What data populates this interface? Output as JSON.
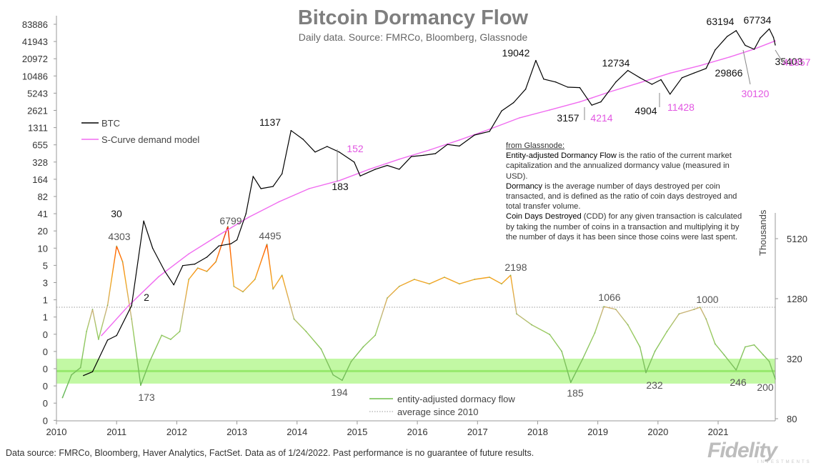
{
  "chart_data": {
    "type": "line",
    "title": "Bitcoin Dormancy Flow",
    "subtitle": "Daily data.  Source: FMRCo, Bloomberg, Glassnode",
    "x_axis": {
      "ticks": [
        "2010",
        "2011",
        "2012",
        "2013",
        "2014",
        "2015",
        "2016",
        "2017",
        "2018",
        "2019",
        "2020",
        "2021"
      ],
      "range": [
        2010,
        2021.95
      ]
    },
    "y_left": {
      "scale": "log",
      "tick_labels": [
        "83886",
        "41943",
        "20972",
        "10486",
        "5243",
        "2621",
        "1311",
        "655",
        "328",
        "164",
        "82",
        "41",
        "20",
        "10",
        "5",
        "3",
        "1",
        "1",
        "0",
        "0",
        "0",
        "0",
        "0",
        "0"
      ]
    },
    "y_right": {
      "scale": "log",
      "unit_label": "Thousands",
      "tick_labels": [
        "5120",
        "1280",
        "320",
        "80"
      ]
    },
    "series": [
      {
        "name": "BTC",
        "color": "#000000",
        "points": [
          [
            2010.45,
            0.06
          ],
          [
            2010.6,
            0.07
          ],
          [
            2010.85,
            0.25
          ],
          [
            2011.0,
            0.3
          ],
          [
            2011.25,
            1.0
          ],
          [
            2011.45,
            30
          ],
          [
            2011.6,
            10
          ],
          [
            2011.8,
            4
          ],
          [
            2011.95,
            2.3
          ],
          [
            2012.1,
            5
          ],
          [
            2012.3,
            5.3
          ],
          [
            2012.5,
            7
          ],
          [
            2012.7,
            11
          ],
          [
            2012.9,
            12
          ],
          [
            2013.0,
            14
          ],
          [
            2013.15,
            40
          ],
          [
            2013.27,
            180
          ],
          [
            2013.4,
            110
          ],
          [
            2013.6,
            120
          ],
          [
            2013.75,
            200
          ],
          [
            2013.9,
            1137
          ],
          [
            2014.1,
            800
          ],
          [
            2014.3,
            480
          ],
          [
            2014.5,
            600
          ],
          [
            2014.7,
            480
          ],
          [
            2014.95,
            320
          ],
          [
            2015.05,
            183
          ],
          [
            2015.3,
            240
          ],
          [
            2015.5,
            280
          ],
          [
            2015.7,
            240
          ],
          [
            2015.9,
            400
          ],
          [
            2016.1,
            420
          ],
          [
            2016.3,
            450
          ],
          [
            2016.5,
            650
          ],
          [
            2016.7,
            610
          ],
          [
            2016.95,
            950
          ],
          [
            2017.2,
            1100
          ],
          [
            2017.4,
            2500
          ],
          [
            2017.6,
            3500
          ],
          [
            2017.8,
            6000
          ],
          [
            2017.97,
            19042
          ],
          [
            2018.1,
            9000
          ],
          [
            2018.3,
            8000
          ],
          [
            2018.5,
            6500
          ],
          [
            2018.7,
            6400
          ],
          [
            2018.9,
            3157
          ],
          [
            2019.05,
            3600
          ],
          [
            2019.3,
            8000
          ],
          [
            2019.5,
            12734
          ],
          [
            2019.7,
            9500
          ],
          [
            2019.9,
            7300
          ],
          [
            2020.05,
            8800
          ],
          [
            2020.2,
            4904
          ],
          [
            2020.4,
            9500
          ],
          [
            2020.6,
            11500
          ],
          [
            2020.8,
            13800
          ],
          [
            2020.95,
            29000
          ],
          [
            2021.15,
            50000
          ],
          [
            2021.3,
            63194
          ],
          [
            2021.45,
            35000
          ],
          [
            2021.6,
            29866
          ],
          [
            2021.7,
            47000
          ],
          [
            2021.85,
            67734
          ],
          [
            2021.92,
            48000
          ],
          [
            2021.95,
            35403
          ]
        ]
      },
      {
        "name": "S-Curve demand model",
        "color": "#f06bf0",
        "points": [
          [
            2010.75,
            0.3
          ],
          [
            2011.2,
            1
          ],
          [
            2011.7,
            3.2
          ],
          [
            2012.2,
            8
          ],
          [
            2012.7,
            17
          ],
          [
            2013.2,
            35
          ],
          [
            2013.7,
            65
          ],
          [
            2014.2,
            110
          ],
          [
            2014.7,
            152
          ],
          [
            2015.2,
            240
          ],
          [
            2015.7,
            360
          ],
          [
            2016.2,
            520
          ],
          [
            2016.7,
            780
          ],
          [
            2017.2,
            1200
          ],
          [
            2017.7,
            1900
          ],
          [
            2018.2,
            2600
          ],
          [
            2018.7,
            3600
          ],
          [
            2018.9,
            4214
          ],
          [
            2019.2,
            5400
          ],
          [
            2019.7,
            7800
          ],
          [
            2020.2,
            11428
          ],
          [
            2020.7,
            15500
          ],
          [
            2021.2,
            22000
          ],
          [
            2021.6,
            30120
          ],
          [
            2021.95,
            41857
          ]
        ]
      },
      {
        "name": "entity-adjusted dormacy flow",
        "color": "#6fbf4a",
        "points": [
          [
            2010.1,
            130
          ],
          [
            2010.25,
            220
          ],
          [
            2010.4,
            260
          ],
          [
            2010.5,
            600
          ],
          [
            2010.6,
            1000
          ],
          [
            2010.7,
            500
          ],
          [
            2010.85,
            1100
          ],
          [
            2011.0,
            4303
          ],
          [
            2011.1,
            3000
          ],
          [
            2011.25,
            800
          ],
          [
            2011.4,
            173
          ],
          [
            2011.55,
            300
          ],
          [
            2011.75,
            550
          ],
          [
            2011.9,
            500
          ],
          [
            2012.05,
            600
          ],
          [
            2012.2,
            2000
          ],
          [
            2012.35,
            2600
          ],
          [
            2012.5,
            2400
          ],
          [
            2012.65,
            3000
          ],
          [
            2012.85,
            6799
          ],
          [
            2012.95,
            1700
          ],
          [
            2013.1,
            1500
          ],
          [
            2013.3,
            2000
          ],
          [
            2013.5,
            4495
          ],
          [
            2013.6,
            1600
          ],
          [
            2013.75,
            2200
          ],
          [
            2013.95,
            800
          ],
          [
            2014.15,
            600
          ],
          [
            2014.4,
            400
          ],
          [
            2014.6,
            220
          ],
          [
            2014.75,
            194
          ],
          [
            2014.9,
            300
          ],
          [
            2015.1,
            420
          ],
          [
            2015.3,
            550
          ],
          [
            2015.5,
            1300
          ],
          [
            2015.7,
            1700
          ],
          [
            2015.95,
            2000
          ],
          [
            2016.2,
            1800
          ],
          [
            2016.45,
            2100
          ],
          [
            2016.7,
            1800
          ],
          [
            2016.95,
            2000
          ],
          [
            2017.2,
            2100
          ],
          [
            2017.4,
            1800
          ],
          [
            2017.55,
            2198
          ],
          [
            2017.65,
            900
          ],
          [
            2017.9,
            700
          ],
          [
            2018.2,
            560
          ],
          [
            2018.4,
            380
          ],
          [
            2018.55,
            185
          ],
          [
            2018.75,
            320
          ],
          [
            2018.95,
            580
          ],
          [
            2019.1,
            1066
          ],
          [
            2019.3,
            1000
          ],
          [
            2019.5,
            700
          ],
          [
            2019.7,
            420
          ],
          [
            2019.8,
            232
          ],
          [
            2019.95,
            380
          ],
          [
            2020.15,
            600
          ],
          [
            2020.35,
            900
          ],
          [
            2020.6,
            1000
          ],
          [
            2020.7,
            1050
          ],
          [
            2020.8,
            800
          ],
          [
            2020.95,
            450
          ],
          [
            2021.1,
            350
          ],
          [
            2021.3,
            246
          ],
          [
            2021.45,
            420
          ],
          [
            2021.6,
            440
          ],
          [
            2021.75,
            350
          ],
          [
            2021.85,
            300
          ],
          [
            2021.95,
            200
          ]
        ]
      }
    ],
    "reference_lines": [
      {
        "name": "average since 2010",
        "value": 1050,
        "style": "dotted",
        "color": "#999999"
      }
    ],
    "band": {
      "low": 180,
      "high": 320,
      "color": "#8ff25a"
    },
    "btc_annotations": [
      "30",
      "2",
      "1137",
      "183",
      "19042",
      "3157",
      "12734",
      "4904",
      "63194",
      "29866",
      "67734",
      "35403"
    ],
    "model_annotations": [
      "152",
      "4214",
      "11428",
      "30120",
      "41857"
    ],
    "dormancy_annotations": [
      "4303",
      "173",
      "6799",
      "4495",
      "194",
      "2198",
      "185",
      "1066",
      "232",
      "1000",
      "246",
      "200"
    ]
  },
  "legend_top": {
    "btc": "BTC",
    "model": "S-Curve demand model"
  },
  "legend_bottom": {
    "flow": "entity-adjusted dormacy flow",
    "avg": "average since 2010"
  },
  "note": {
    "heading": "from Glassnode:",
    "p1_term": "Entity-adjusted Dormancy Flow",
    "p1_text": " is the ratio of the current market capitalization and the annualized dormancy value (measured in USD).",
    "p2_term": "Dormancy",
    "p2_text": " is the average number  of days destroyed per coin transacted, and is defined as the ratio of coin days destroyed and total transfer volume.",
    "p3_term": "Coin Days Destroyed",
    "p3_text": " (CDD) for any given transaction is calculated by taking the number  of coins in a transaction and multiplying  it by the number  of days it has been since those coins were last spent."
  },
  "footer": "Data source: FMRCo, Bloomberg, Haver Analytics, FactSet. Data as of 1/24/2022. Past performance is no guarantee of future results.",
  "logo": {
    "main": "Fidelity",
    "sub": "INVESTMENTS"
  }
}
